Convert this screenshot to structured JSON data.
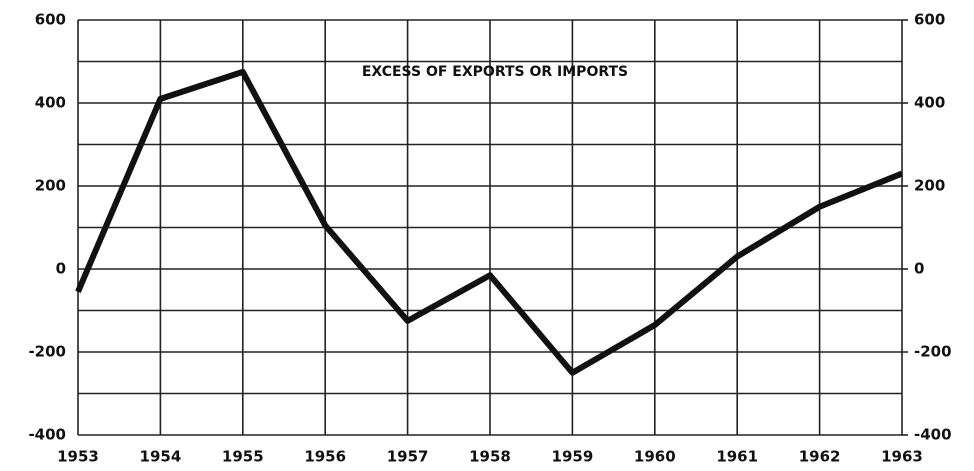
{
  "chart_data": {
    "type": "line",
    "title": "EXCESS OF EXPORTS OR IMPORTS",
    "x": [
      1953,
      1954,
      1955,
      1956,
      1957,
      1958,
      1959,
      1960,
      1961,
      1962,
      1963
    ],
    "series": [
      {
        "color": "#111111",
        "values": [
          -55,
          410,
          475,
          105,
          -125,
          -15,
          -250,
          -135,
          30,
          150,
          230
        ]
      }
    ],
    "xlim": [
      1953,
      1963
    ],
    "xticks": [
      1953,
      1954,
      1955,
      1956,
      1957,
      1958,
      1959,
      1960,
      1961,
      1962,
      1963
    ],
    "ylim": [
      -400,
      600
    ],
    "yticks": [
      -400,
      -200,
      0,
      200,
      400,
      600
    ],
    "yticks_minor": [
      -300,
      -100,
      100,
      300,
      500
    ],
    "y2lim": [
      -400,
      600
    ],
    "y2ticks": [
      -400,
      -200,
      0,
      200,
      400,
      600
    ],
    "grid": true
  }
}
